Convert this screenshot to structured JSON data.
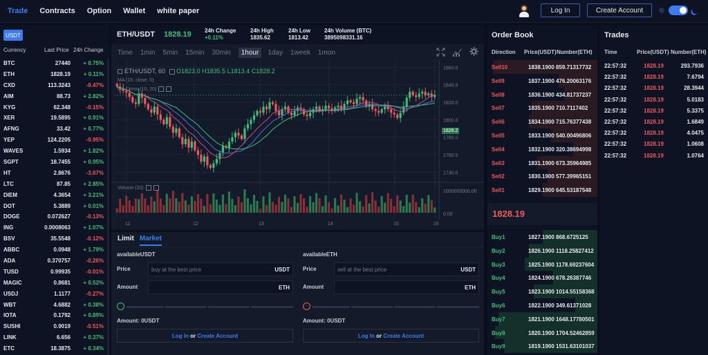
{
  "nav": {
    "items": [
      "Trade",
      "Contracts",
      "Option",
      "Wallet",
      "white paper"
    ],
    "active": "Trade"
  },
  "auth": {
    "login": "Log In",
    "create": "Create Account"
  },
  "markets": {
    "tab": "USDT",
    "headers": [
      "Currency",
      "Last Price",
      "24h Change"
    ],
    "rows": [
      {
        "sym": "BTC",
        "price": "27440",
        "change": "+ 0.75%",
        "dir": "up"
      },
      {
        "sym": "ETH",
        "price": "1828.19",
        "change": "+ 0.11%",
        "dir": "up"
      },
      {
        "sym": "CXD",
        "price": "113.3243",
        "change": "-0.47%",
        "dir": "dn"
      },
      {
        "sym": "AIM",
        "price": "88.73",
        "change": "+ 2.82%",
        "dir": "up"
      },
      {
        "sym": "KYG",
        "price": "62.348",
        "change": "-0.15%",
        "dir": "dn"
      },
      {
        "sym": "XER",
        "price": "19.5895",
        "change": "+ 0.91%",
        "dir": "up"
      },
      {
        "sym": "AFNG",
        "price": "33.42",
        "change": "+ 0.77%",
        "dir": "up"
      },
      {
        "sym": "YEP",
        "price": "124.2205",
        "change": "-0.95%",
        "dir": "dn"
      },
      {
        "sym": "WAVES",
        "price": "1.5934",
        "change": "+ 1.82%",
        "dir": "up"
      },
      {
        "sym": "SGPT",
        "price": "18.7455",
        "change": "+ 0.95%",
        "dir": "up"
      },
      {
        "sym": "HT",
        "price": "2.8676",
        "change": "-3.67%",
        "dir": "dn"
      },
      {
        "sym": "LTC",
        "price": "87.85",
        "change": "+ 2.85%",
        "dir": "up"
      },
      {
        "sym": "DIEM",
        "price": "4.3654",
        "change": "+ 3.21%",
        "dir": "up"
      },
      {
        "sym": "DOT",
        "price": "5.3889",
        "change": "+ 0.01%",
        "dir": "up"
      },
      {
        "sym": "DOGE",
        "price": "0.072627",
        "change": "-0.13%",
        "dir": "dn"
      },
      {
        "sym": "ING",
        "price": "0.0008063",
        "change": "+ 1.07%",
        "dir": "up"
      },
      {
        "sym": "BSV",
        "price": "35.5548",
        "change": "-0.12%",
        "dir": "dn"
      },
      {
        "sym": "ABBC",
        "price": "0.0948",
        "change": "+ 1.79%",
        "dir": "up"
      },
      {
        "sym": "ADA",
        "price": "0.370757",
        "change": "-0.26%",
        "dir": "dn"
      },
      {
        "sym": "TUSD",
        "price": "0.99935",
        "change": "-0.01%",
        "dir": "dn"
      },
      {
        "sym": "MAGIC",
        "price": "0.8681",
        "change": "+ 0.52%",
        "dir": "up"
      },
      {
        "sym": "USDJ",
        "price": "1.1177",
        "change": "-0.27%",
        "dir": "dn"
      },
      {
        "sym": "WBT",
        "price": "4.6882",
        "change": "+ 0.38%",
        "dir": "up"
      },
      {
        "sym": "IOTA",
        "price": "0.1792",
        "change": "+ 0.89%",
        "dir": "up"
      },
      {
        "sym": "SUSHI",
        "price": "0.9019",
        "change": "-0.51%",
        "dir": "dn"
      },
      {
        "sym": "LINK",
        "price": "6.656",
        "change": "+ 0.37%",
        "dir": "up"
      },
      {
        "sym": "ETC",
        "price": "18.3875",
        "change": "+ 0.34%",
        "dir": "up"
      }
    ]
  },
  "ticker": {
    "pair": "ETH/USDT",
    "last": "1828.19",
    "change_label": "24h Change",
    "change": "+0.11%",
    "high_label": "24h High",
    "high": "1835.62",
    "low_label": "24h Low",
    "low": "1813.42",
    "vol_label": "24h Volume (BTC)",
    "vol": "3895098331.16"
  },
  "tools": {
    "intervals": [
      "Time",
      "1min",
      "5min",
      "15min",
      "30min",
      "1hour",
      "1day",
      "1week",
      "1mon"
    ],
    "selected": "1hour"
  },
  "chart": {
    "legend_title": "ETH/USDT, 60",
    "ohlc": {
      "o": "O1823.0",
      "h": "H1835.5",
      "l": "L1813.4",
      "c": "C1828.2"
    },
    "ma1": "MA (15, close, 0)",
    "ma2": "MA Cross (10, 20)",
    "volume_label": "Volume (20)",
    "price_tag": "1828.2",
    "y_ticks": [
      "1860.0",
      "1840.0",
      "1820.0",
      "1800.0",
      "1780.0",
      "1760.0",
      "1740.0"
    ],
    "vol_ticks": [
      "1000000000.00",
      "0.00"
    ],
    "x_ticks": [
      "11",
      "12",
      "13",
      "14",
      "15",
      "16"
    ]
  },
  "chart_data": {
    "type": "candlestick",
    "x_ticks": [
      "11",
      "12",
      "13",
      "14",
      "15",
      "16"
    ],
    "ylim": [
      1730,
      1865
    ],
    "price_ticks": [
      1860,
      1840,
      1820,
      1800,
      1780,
      1760,
      1740
    ],
    "volume_ticks": [
      1000000000,
      0
    ],
    "closes": [
      1838,
      1835,
      1833,
      1831,
      1826,
      1820,
      1818,
      1830,
      1825,
      1818,
      1812,
      1808,
      1815,
      1806,
      1800,
      1795,
      1803,
      1792,
      1785,
      1790,
      1780,
      1772,
      1778,
      1768,
      1775,
      1765,
      1760,
      1752,
      1758,
      1748,
      1745,
      1750,
      1755,
      1762,
      1770,
      1768,
      1775,
      1780,
      1785,
      1782,
      1778,
      1790,
      1795,
      1800,
      1805,
      1810,
      1808,
      1815,
      1812,
      1820,
      1818,
      1810,
      1805,
      1812,
      1815,
      1808,
      1805,
      1810,
      1814,
      1812,
      1806,
      1804,
      1808,
      1812,
      1815,
      1810,
      1812,
      1816,
      1813,
      1810,
      1814,
      1816,
      1812,
      1818,
      1822,
      1820,
      1818,
      1824,
      1826,
      1822,
      1815,
      1818,
      1812,
      1810,
      1808,
      1812,
      1815,
      1812,
      1808,
      1806,
      1802,
      1808,
      1815,
      1825,
      1832,
      1828,
      1826,
      1830,
      1832,
      1828,
      1830,
      1826,
      1828
    ]
  },
  "form": {
    "tabs": [
      "Limit",
      "Market"
    ],
    "active": "Market",
    "buy": {
      "avail": "availableUSDT",
      "price_label": "Price",
      "price_ph": "buy at the best price",
      "price_unit": "USDT",
      "amount_label": "Amount",
      "amount_unit": "ETH",
      "amount_text": "Amount:  0USDT",
      "knob_color": "#3bc07a"
    },
    "sell": {
      "avail": "availableETH",
      "price_label": "Price",
      "price_ph": "sell at the best price",
      "price_unit": "USDT",
      "amount_label": "Amount",
      "amount_unit": "ETH",
      "amount_text": "Amount:  0USDT",
      "knob_color": "#ef5a5a"
    },
    "login": "Log In",
    "or": "or",
    "create": "Create Account"
  },
  "orderbook": {
    "title": "Order Book",
    "headers": [
      "Direction",
      "Price(USDT)",
      "Number(ETH)"
    ],
    "asks": [
      {
        "d": "Sell10",
        "p": "1838.1900",
        "n": "859.71317732",
        "depth": 0.95
      },
      {
        "d": "Sell9",
        "p": "1837.1900",
        "n": "476.20063176",
        "depth": 0.35
      },
      {
        "d": "Sell8",
        "p": "1836.1900",
        "n": "434.81737237",
        "depth": 0.3
      },
      {
        "d": "Sell7",
        "p": "1835.1900",
        "n": "710.7117402",
        "depth": 0.6
      },
      {
        "d": "Sell6",
        "p": "1834.1900",
        "n": "715.76377438",
        "depth": 0.62
      },
      {
        "d": "Sell5",
        "p": "1833.1900",
        "n": "540.00496806",
        "depth": 0.42
      },
      {
        "d": "Sell4",
        "p": "1832.1900",
        "n": "320.38694998",
        "depth": 0.22
      },
      {
        "d": "Sell3",
        "p": "1831.1900",
        "n": "673.35964985",
        "depth": 0.55
      },
      {
        "d": "Sell2",
        "p": "1830.1900",
        "n": "577.39965151",
        "depth": 0.45
      },
      {
        "d": "Sell1",
        "p": "1829.1900",
        "n": "645.53187548",
        "depth": 0.5
      }
    ],
    "mid_price": "1828.19",
    "bids": [
      {
        "d": "Buy1",
        "p": "1827.1900",
        "n": "868.6725125",
        "depth": 0.5
      },
      {
        "d": "Buy2",
        "p": "1826.1900",
        "n": "1118.25827412",
        "depth": 0.62
      },
      {
        "d": "Buy3",
        "p": "1825.1900",
        "n": "1178.69237604",
        "depth": 0.66
      },
      {
        "d": "Buy4",
        "p": "1824.1900",
        "n": "678.26387746",
        "depth": 0.4
      },
      {
        "d": "Buy5",
        "p": "1823.1900",
        "n": "1014.55158368",
        "depth": 0.58
      },
      {
        "d": "Buy6",
        "p": "1822.1900",
        "n": "349.61371028",
        "depth": 0.2
      },
      {
        "d": "Buy7",
        "p": "1821.1900",
        "n": "1648.17780501",
        "depth": 0.9
      },
      {
        "d": "Buy8",
        "p": "1820.1900",
        "n": "1704.52462859",
        "depth": 0.93
      },
      {
        "d": "Buy9",
        "p": "1819.1900",
        "n": "1531.63101037",
        "depth": 0.85
      }
    ]
  },
  "trades": {
    "title": "Trades",
    "headers": [
      "Time",
      "Price(USDT)",
      "Number(ETH)"
    ],
    "rows": [
      {
        "t": "22:57:32",
        "p": "1828.19",
        "a": "293.7936"
      },
      {
        "t": "22:57:32",
        "p": "1828.19",
        "a": "7.6794"
      },
      {
        "t": "22:57:32",
        "p": "1828.19",
        "a": "28.3944"
      },
      {
        "t": "22:57:32",
        "p": "1828.19",
        "a": "5.0183"
      },
      {
        "t": "22:57:32",
        "p": "1828.19",
        "a": "5.3375"
      },
      {
        "t": "22:57:32",
        "p": "1828.19",
        "a": "1.6849"
      },
      {
        "t": "22:57:32",
        "p": "1828.19",
        "a": "4.0475"
      },
      {
        "t": "22:57:32",
        "p": "1828.19",
        "a": "1.0608"
      },
      {
        "t": "22:57:32",
        "p": "1828.19",
        "a": "1.0764"
      }
    ]
  }
}
